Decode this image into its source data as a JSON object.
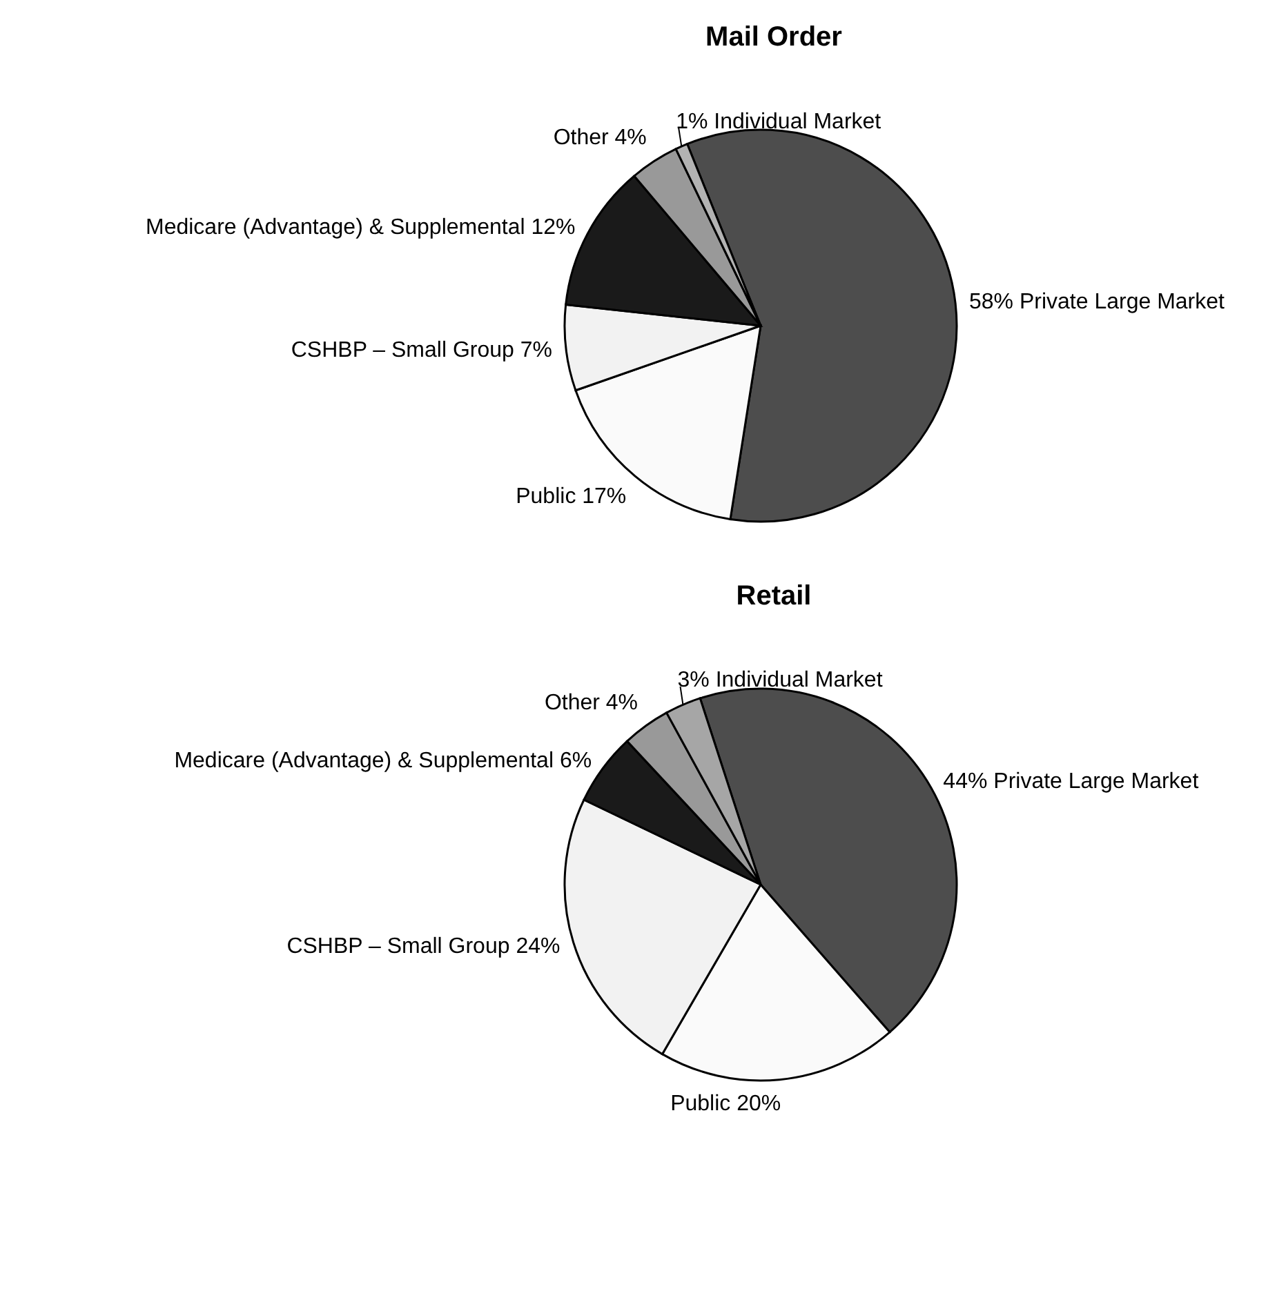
{
  "chart_data": [
    {
      "type": "pie",
      "title": "Mail Order",
      "categories": [
        "Private Large Market",
        "Public",
        "CSHBP – Small Group",
        "Medicare (Advantage) & Supplemental",
        "Other",
        "Individual Market"
      ],
      "values": [
        58,
        17,
        7,
        12,
        4,
        1
      ],
      "colors": [
        "#4d4d4d",
        "#fafafa",
        "#f2f2f2",
        "#1a1a1a",
        "#999999",
        "#b3b3b3"
      ],
      "value_labels": [
        "58%",
        "17%",
        "7%",
        "12%",
        "4%",
        "1%"
      ]
    },
    {
      "type": "pie",
      "title": "Retail",
      "categories": [
        "Private Large Market",
        "Public",
        "CSHBP – Small Group",
        "Medicare (Advantage) & Supplemental",
        "Other",
        "Individual Market"
      ],
      "values": [
        44,
        20,
        24,
        6,
        4,
        3
      ],
      "colors": [
        "#4d4d4d",
        "#fafafa",
        "#f2f2f2",
        "#1a1a1a",
        "#999999",
        "#a6a6a6"
      ],
      "value_labels": [
        "44%",
        "20%",
        "24%",
        "6%",
        "4%",
        "3%"
      ]
    }
  ]
}
